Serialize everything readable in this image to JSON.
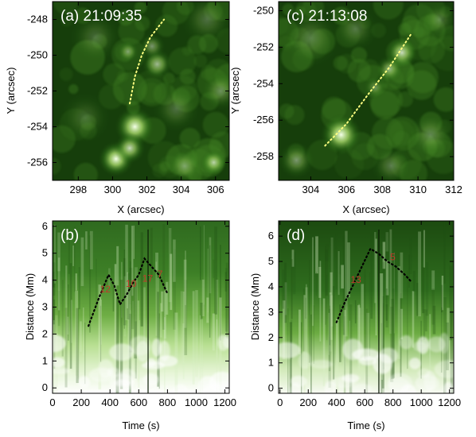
{
  "figure": {
    "panels": [
      {
        "id": "a",
        "title": "(a) 21:09:35",
        "xlabel": "X (arcsec)",
        "ylabel": "Y (arcsec)",
        "xlim": [
          296.5,
          306.8
        ],
        "ylim": [
          -257.0,
          -247.0
        ],
        "xticks": [
          298,
          300,
          302,
          304,
          306
        ],
        "yticks": [
          -248,
          -250,
          -252,
          -254,
          -256
        ],
        "trace": {
          "x": [
            301.0,
            301.3,
            301.7,
            302.2,
            303.0
          ],
          "y": [
            -252.7,
            -251.2,
            -250.0,
            -249.0,
            -248.0
          ]
        },
        "blobs": [
          {
            "x": 300.2,
            "y": -255.8,
            "r": 0.8,
            "i": 1.0
          },
          {
            "x": 301.3,
            "y": -254.0,
            "r": 0.9,
            "i": 1.0
          },
          {
            "x": 301.0,
            "y": -255.2,
            "r": 0.7,
            "i": 0.8
          },
          {
            "x": 302.6,
            "y": -250.5,
            "r": 0.7,
            "i": 0.6
          },
          {
            "x": 302.3,
            "y": -249.5,
            "r": 0.6,
            "i": 0.45
          },
          {
            "x": 300.9,
            "y": -249.8,
            "r": 0.5,
            "i": 0.45
          },
          {
            "x": 299.0,
            "y": -249.0,
            "r": 1.2,
            "i": 0.22
          },
          {
            "x": 305.5,
            "y": -248.0,
            "r": 1.2,
            "i": 0.25
          },
          {
            "x": 305.9,
            "y": -256.0,
            "r": 0.6,
            "i": 0.7
          },
          {
            "x": 304.2,
            "y": -256.2,
            "r": 0.8,
            "i": 0.4
          },
          {
            "x": 303.7,
            "y": -253.0,
            "r": 1.1,
            "i": 0.25
          },
          {
            "x": 298.4,
            "y": -253.5,
            "r": 1.2,
            "i": 0.18
          },
          {
            "x": 306.3,
            "y": -252.0,
            "r": 0.9,
            "i": 0.35
          }
        ]
      },
      {
        "id": "c",
        "title": "(c) 21:13:08",
        "xlabel": "X (arcsec)",
        "ylabel": "Y (arcsec)",
        "xlim": [
          302.2,
          312.0
        ],
        "ylim": [
          -259.3,
          -249.5
        ],
        "xticks": [
          304,
          306,
          308,
          310,
          312
        ],
        "yticks": [
          -250,
          -252,
          -254,
          -256,
          -258
        ],
        "trace": {
          "x": [
            304.8,
            306.0,
            307.2,
            308.4,
            309.6
          ],
          "y": [
            -257.4,
            -256.2,
            -254.6,
            -253.1,
            -251.3
          ]
        },
        "blobs": [
          {
            "x": 305.7,
            "y": -256.8,
            "r": 0.9,
            "i": 1.0
          },
          {
            "x": 309.1,
            "y": -252.3,
            "r": 0.7,
            "i": 0.8
          },
          {
            "x": 308.4,
            "y": -253.2,
            "r": 0.6,
            "i": 0.55
          },
          {
            "x": 307.6,
            "y": -254.2,
            "r": 0.5,
            "i": 0.35
          },
          {
            "x": 304.0,
            "y": -251.5,
            "r": 1.3,
            "i": 0.25
          },
          {
            "x": 306.5,
            "y": -251.0,
            "r": 1.0,
            "i": 0.25
          },
          {
            "x": 303.2,
            "y": -258.2,
            "r": 0.8,
            "i": 0.45
          },
          {
            "x": 310.7,
            "y": -256.8,
            "r": 1.0,
            "i": 0.3
          },
          {
            "x": 311.2,
            "y": -250.5,
            "r": 0.8,
            "i": 0.25
          },
          {
            "x": 308.5,
            "y": -258.5,
            "r": 0.9,
            "i": 0.3
          }
        ]
      },
      {
        "id": "b",
        "title": "(b)",
        "xlabel": "Time (s)",
        "ylabel": "Distance (Mm)",
        "xlim": [
          0,
          1230
        ],
        "ylim": [
          -0.2,
          6.2
        ],
        "xticks": [
          0,
          200,
          400,
          600,
          800,
          1000,
          1200
        ],
        "yticks": [
          0,
          1,
          2,
          3,
          4,
          5,
          6
        ],
        "trace": {
          "x": [
            250,
            320,
            390,
            430,
            470,
            520,
            560,
            600,
            640,
            690,
            740,
            800
          ],
          "y": [
            2.3,
            3.3,
            4.2,
            3.8,
            3.1,
            3.5,
            3.9,
            4.2,
            4.8,
            4.5,
            4.2,
            3.5
          ]
        },
        "vline": 665,
        "speed_labels": [
          {
            "text": "12",
            "x": 330,
            "y": 3.55
          },
          {
            "text": "10",
            "x": 510,
            "y": 3.75
          },
          {
            "text": "17",
            "x": 625,
            "y": 3.95
          },
          {
            "text": "7",
            "x": 730,
            "y": 4.1
          }
        ]
      },
      {
        "id": "d",
        "title": "(d)",
        "xlabel": "Time (s)",
        "ylabel": "Distance (Mm)",
        "xlim": [
          -10,
          1230
        ],
        "ylim": [
          -0.2,
          6.6
        ],
        "xticks": [
          0,
          200,
          400,
          600,
          800,
          1000,
          1200
        ],
        "yticks": [
          0,
          1,
          2,
          3,
          4,
          5,
          6
        ],
        "trace": {
          "x": [
            400,
            460,
            520,
            580,
            640,
            700,
            760,
            820,
            880,
            930
          ],
          "y": [
            2.6,
            3.4,
            4.1,
            4.8,
            5.5,
            5.3,
            5.0,
            4.8,
            4.5,
            4.2
          ]
        },
        "vline": 700,
        "speed_labels": [
          {
            "text": "13",
            "x": 500,
            "y": 4.15
          },
          {
            "text": "5",
            "x": 780,
            "y": 5.05
          }
        ]
      }
    ]
  }
}
